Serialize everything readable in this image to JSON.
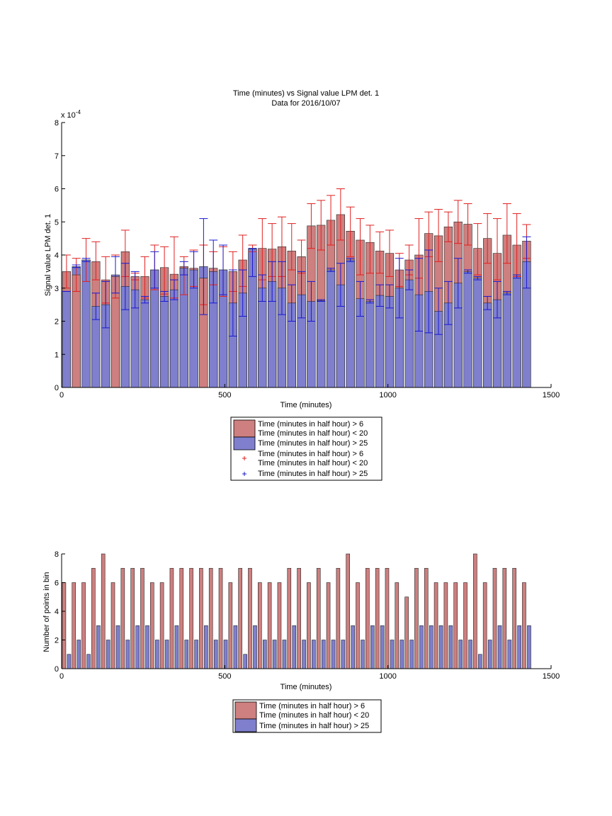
{
  "colors": {
    "red_fill": "#ce7f7f",
    "blue_fill": "#7f7fce",
    "red_err": "#e02020",
    "blue_err": "#1a1ad0",
    "axes": "#000000"
  },
  "chart_data": [
    {
      "type": "bar",
      "title": "Time (minutes) vs Signal value LPM det. 1",
      "subtitle": "Data for 2016/10/07",
      "xlabel": "Time (minutes)",
      "ylabel": "Signal value LPM det. 1",
      "exponent_label": "x 10",
      "exponent_power": "-4",
      "xlim": [
        0,
        1500
      ],
      "ylim": [
        0,
        8
      ],
      "xticks": [
        "0",
        "500",
        "1000",
        "1500"
      ],
      "yticks": [
        "0",
        "1",
        "2",
        "3",
        "4",
        "5",
        "6",
        "7",
        "8"
      ],
      "grid": false,
      "x": [
        15,
        45,
        75,
        105,
        135,
        165,
        195,
        225,
        255,
        285,
        315,
        345,
        375,
        405,
        435,
        465,
        495,
        525,
        555,
        585,
        615,
        645,
        675,
        705,
        735,
        765,
        795,
        825,
        855,
        885,
        915,
        945,
        975,
        1005,
        1035,
        1065,
        1095,
        1125,
        1155,
        1185,
        1215,
        1245,
        1275,
        1305,
        1335,
        1365,
        1395,
        1425
      ],
      "series": [
        {
          "name": "Time (minutes in half hour) > 6\nTime (minutes in half hour) < 20",
          "values": [
            3.5,
            3.4,
            3.85,
            3.8,
            3.25,
            3.35,
            4.1,
            3.35,
            3.35,
            3.55,
            3.62,
            3.42,
            3.65,
            3.6,
            3.3,
            3.6,
            3.55,
            3.5,
            3.85,
            4.18,
            4.2,
            4.18,
            4.25,
            4.12,
            3.95,
            4.88,
            4.9,
            5.05,
            5.22,
            4.72,
            4.45,
            4.38,
            4.12,
            4.05,
            3.55,
            3.85,
            4.0,
            4.65,
            4.58,
            4.85,
            5.0,
            4.93,
            4.2,
            4.5,
            4.05,
            4.6,
            4.3,
            4.42
          ],
          "err_low": [
            3.0,
            2.9,
            3.2,
            3.25,
            2.55,
            2.7,
            3.35,
            3.25,
            2.7,
            2.95,
            2.82,
            2.7,
            2.8,
            3.05,
            2.5,
            3.1,
            2.75,
            2.9,
            3.05,
            4.1,
            3.25,
            3.35,
            3.35,
            3.55,
            3.45,
            4.2,
            4.15,
            4.3,
            4.45,
            3.95,
            3.4,
            3.45,
            3.45,
            3.35,
            3.05,
            3.4,
            3.3,
            3.95,
            3.8,
            4.4,
            4.35,
            4.3,
            3.4,
            3.75,
            3.25,
            3.75,
            3.35,
            3.9
          ],
          "err_high": [
            4.0,
            3.9,
            4.5,
            4.4,
            3.95,
            4.0,
            4.75,
            3.45,
            3.95,
            4.3,
            4.25,
            4.55,
            3.95,
            4.15,
            4.3,
            4.1,
            4.25,
            4.1,
            4.6,
            4.3,
            5.1,
            4.95,
            5.15,
            4.95,
            4.45,
            5.55,
            5.65,
            5.8,
            6.0,
            5.45,
            5.1,
            4.9,
            4.7,
            4.75,
            4.05,
            4.3,
            5.1,
            5.3,
            5.38,
            5.3,
            5.65,
            5.55,
            4.95,
            5.25,
            5.1,
            5.55,
            5.25,
            4.92
          ]
        },
        {
          "name": "Time (minutes in half hour) > 25",
          "values": [
            2.9,
            3.65,
            3.85,
            2.45,
            2.5,
            3.4,
            3.05,
            2.95,
            2.65,
            3.55,
            2.75,
            2.95,
            3.6,
            3.55,
            3.65,
            3.5,
            3.55,
            2.55,
            2.85,
            4.18,
            3.0,
            3.2,
            3.0,
            2.55,
            2.8,
            2.6,
            2.62,
            3.55,
            3.1,
            3.85,
            2.68,
            2.6,
            2.78,
            2.75,
            3.0,
            3.25,
            2.8,
            2.9,
            2.3,
            2.55,
            3.15,
            3.5,
            3.3,
            2.55,
            2.65,
            2.85,
            3.35,
            3.8
          ],
          "err_low": [
            2.9,
            3.62,
            3.8,
            2.05,
            1.8,
            2.85,
            2.35,
            2.4,
            2.55,
            3.0,
            2.6,
            2.65,
            3.4,
            3.0,
            2.2,
            2.55,
            2.8,
            1.55,
            2.15,
            3.35,
            2.6,
            2.6,
            2.2,
            2.0,
            2.1,
            2.0,
            2.6,
            3.5,
            2.45,
            3.8,
            2.15,
            2.55,
            2.45,
            2.4,
            2.1,
            2.95,
            1.7,
            1.65,
            1.6,
            1.9,
            2.4,
            3.45,
            3.25,
            2.35,
            2.1,
            2.8,
            3.3,
            3.0
          ],
          "err_high": [
            2.9,
            3.7,
            3.9,
            2.85,
            3.2,
            3.95,
            3.75,
            3.5,
            2.75,
            4.1,
            2.9,
            3.25,
            3.8,
            4.1,
            5.1,
            4.45,
            4.3,
            3.55,
            3.55,
            4.2,
            3.4,
            3.8,
            3.8,
            3.1,
            3.5,
            3.2,
            2.65,
            3.6,
            3.75,
            3.9,
            3.2,
            2.65,
            3.1,
            3.1,
            3.9,
            3.55,
            3.9,
            4.15,
            3.0,
            3.2,
            3.9,
            3.55,
            3.35,
            2.75,
            3.2,
            2.9,
            3.4,
            4.55
          ]
        }
      ],
      "legend": {
        "placement": "bottom",
        "entries": [
          {
            "line1": "Time (minutes in half hour) > 6",
            "line2": "Time (minutes in half hour) < 20",
            "marker": "red-bar"
          },
          {
            "line1": "Time (minutes in half hour) > 25",
            "marker": "blue-bar"
          },
          {
            "line1": "Time (minutes in half hour) > 6",
            "line2": "Time (minutes in half hour) < 20",
            "marker": "red-plus"
          },
          {
            "line1": "Time (minutes in half hour) > 25",
            "marker": "blue-plus"
          }
        ]
      }
    },
    {
      "type": "bar",
      "xlabel": "Time (minutes)",
      "ylabel": "Number of points in bin",
      "xlim": [
        0,
        1500
      ],
      "ylim": [
        0,
        8
      ],
      "xticks": [
        "0",
        "500",
        "1000",
        "1500"
      ],
      "yticks": [
        "0",
        "2",
        "4",
        "6",
        "8"
      ],
      "grid": false,
      "x": [
        15,
        45,
        75,
        105,
        135,
        165,
        195,
        225,
        255,
        285,
        315,
        345,
        375,
        405,
        435,
        465,
        495,
        525,
        555,
        585,
        615,
        645,
        675,
        705,
        735,
        765,
        795,
        825,
        855,
        885,
        915,
        945,
        975,
        1005,
        1035,
        1065,
        1095,
        1125,
        1155,
        1185,
        1215,
        1245,
        1275,
        1305,
        1335,
        1365,
        1395,
        1425
      ],
      "series": [
        {
          "name": "Time (minutes in half hour) > 6\nTime (minutes in half hour) < 20",
          "values": [
            6,
            6,
            6,
            7,
            8,
            6,
            7,
            7,
            7,
            6,
            6,
            7,
            7,
            7,
            7,
            7,
            7,
            6,
            7,
            7,
            6,
            6,
            6,
            7,
            7,
            6,
            7,
            6,
            7,
            8,
            6,
            7,
            7,
            7,
            6,
            5,
            7,
            7,
            6,
            6,
            6,
            6,
            8,
            6,
            7,
            7,
            7,
            6
          ]
        },
        {
          "name": "Time (minutes in half hour) > 25",
          "values": [
            1,
            2,
            1,
            3,
            2,
            3,
            2,
            3,
            3,
            2,
            2,
            3,
            2,
            2,
            3,
            2,
            2,
            3,
            1,
            3,
            2,
            2,
            2,
            3,
            2,
            2,
            2,
            2,
            2,
            3,
            2,
            3,
            3,
            2,
            2,
            2,
            3,
            3,
            3,
            3,
            2,
            2,
            1,
            2,
            3,
            2,
            3,
            3
          ]
        }
      ],
      "legend": {
        "placement": "bottom",
        "entries": [
          {
            "line1": "Time (minutes in half hour) > 6",
            "line2": "Time (minutes in half hour) < 20",
            "marker": "red-bar"
          },
          {
            "line1": "Time (minutes in half hour) > 25",
            "marker": "blue-bar"
          }
        ]
      }
    }
  ]
}
